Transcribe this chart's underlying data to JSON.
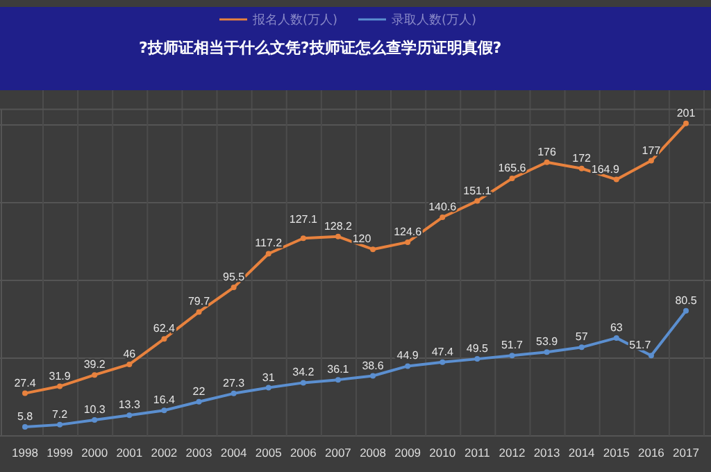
{
  "chart_data": {
    "type": "line",
    "title": "?技师证相当于什么文凭?技师证怎么查学历证明真假?",
    "categories": [
      "1998",
      "1999",
      "2000",
      "2001",
      "2002",
      "2003",
      "2004",
      "2005",
      "2006",
      "2007",
      "2008",
      "2009",
      "2010",
      "2011",
      "2012",
      "2013",
      "2014",
      "2015",
      "2016",
      "2017"
    ],
    "series": [
      {
        "name": "报名人数(万人)",
        "color": "#e8823e",
        "values": [
          27.4,
          31.9,
          39.2,
          46,
          62.4,
          79.7,
          95.5,
          117.2,
          127.1,
          128.2,
          120,
          124.6,
          140.6,
          151.1,
          165.6,
          176,
          172,
          164.9,
          177,
          201
        ]
      },
      {
        "name": "录取人数(万人)",
        "color": "#5b8fd0",
        "values": [
          5.8,
          7.2,
          10.3,
          13.3,
          16.4,
          22,
          27.3,
          31,
          34.2,
          36.1,
          38.6,
          44.9,
          47.4,
          49.5,
          51.7,
          53.9,
          57,
          63,
          51.7,
          80.5
        ]
      }
    ],
    "ylim": [
      0,
      210
    ],
    "yticks": [
      {
        "value": 0,
        "label": null
      },
      {
        "value": 50,
        "label": null
      },
      {
        "value": 100,
        "label": null
      },
      {
        "value": 150,
        "label": null
      },
      {
        "value": 200,
        "label": null
      }
    ],
    "tick_labels": "x",
    "grid": true,
    "legend": "top",
    "data_labels": true,
    "marker": "circle",
    "line_style": "solid"
  }
}
